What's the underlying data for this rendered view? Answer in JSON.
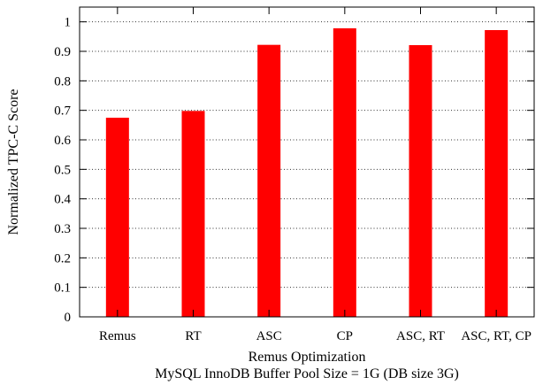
{
  "chart_data": {
    "type": "bar",
    "categories": [
      "Remus",
      "RT",
      "ASC",
      "CP",
      "ASC, RT",
      "ASC, RT, CP"
    ],
    "values": [
      0.675,
      0.698,
      0.922,
      0.978,
      0.921,
      0.972
    ],
    "xlabel": "Remus Optimization",
    "caption": "MySQL InnoDB Buffer Pool Size = 1G (DB size 3G)",
    "ylabel": "Normalized TPC-C Score",
    "ylim": [
      0,
      1.05
    ],
    "yticks": [
      0,
      0.1,
      0.2,
      0.3,
      0.4,
      0.5,
      0.6,
      0.7,
      0.8,
      0.9,
      1
    ],
    "ytick_labels": [
      "0",
      "0.1",
      "0.2",
      "0.3",
      "0.4",
      "0.5",
      "0.6",
      "0.7",
      "0.8",
      "0.9",
      "1"
    ],
    "grid": true,
    "bar_color": "#ff0000"
  }
}
